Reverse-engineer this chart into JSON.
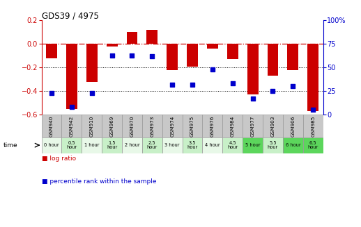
{
  "title": "GDS39 / 4975",
  "samples": [
    "GSM940",
    "GSM942",
    "GSM910",
    "GSM969",
    "GSM970",
    "GSM973",
    "GSM974",
    "GSM975",
    "GSM976",
    "GSM984",
    "GSM977",
    "GSM903",
    "GSM906",
    "GSM985"
  ],
  "time_labels": [
    "0 hour",
    "0.5\nhour",
    "1 hour",
    "1.5\nhour",
    "2 hour",
    "2.5\nhour",
    "3 hour",
    "3.5\nhour",
    "4 hour",
    "4.5\nhour",
    "5 hour",
    "5.5\nhour",
    "6 hour",
    "6.5\nhour"
  ],
  "time_colors": [
    "#e8f8e8",
    "#c8f0c8",
    "#e8f8e8",
    "#c8f0c8",
    "#e8f8e8",
    "#c8f0c8",
    "#e8f8e8",
    "#c8f0c8",
    "#e8f8e8",
    "#c8f0c8",
    "#5cd65c",
    "#c8f0c8",
    "#5cd65c",
    "#5cd65c"
  ],
  "log_ratio": [
    -0.12,
    -0.55,
    -0.32,
    -0.02,
    0.1,
    0.12,
    -0.22,
    -0.19,
    -0.04,
    -0.13,
    -0.43,
    -0.27,
    -0.22,
    -0.57
  ],
  "percentile": [
    23,
    8,
    23,
    63,
    63,
    62,
    32,
    32,
    48,
    33,
    17,
    25,
    30,
    5
  ],
  "ylim_left": [
    -0.6,
    0.2
  ],
  "ylim_right": [
    0,
    100
  ],
  "yticks_left": [
    -0.6,
    -0.4,
    -0.2,
    0,
    0.2
  ],
  "yticks_right": [
    0,
    25,
    50,
    75,
    100
  ],
  "bar_color": "#cc0000",
  "dot_color": "#0000cc",
  "hline_color": "#cc0000",
  "dotted_color": "#000000",
  "bg_color": "#ffffff",
  "header_bg": "#c8c8c8",
  "bar_width": 0.55
}
